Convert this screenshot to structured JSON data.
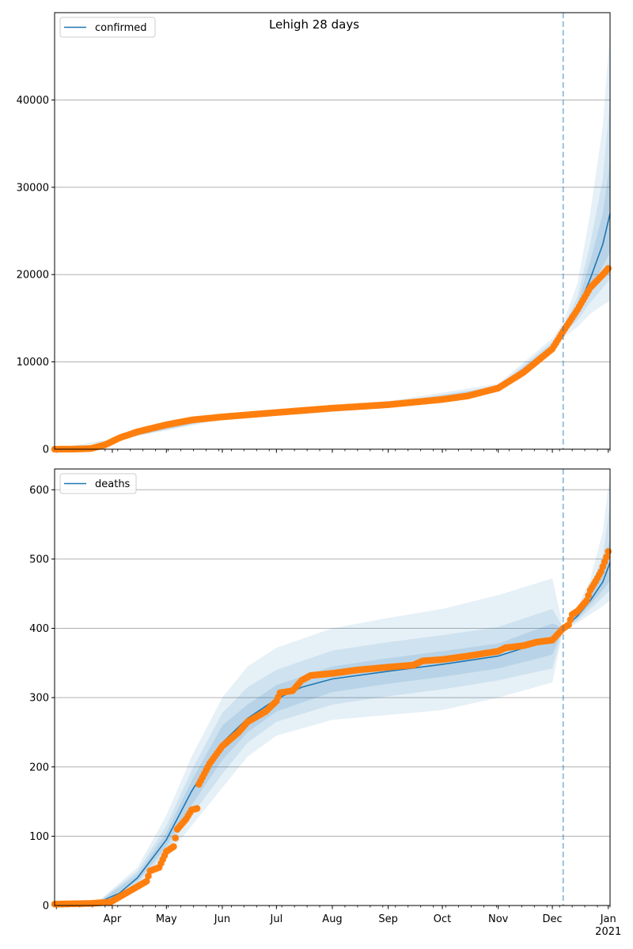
{
  "title": "Lehigh 28 days",
  "colors": {
    "model": "#1f77b4",
    "observed": "#ff7f0e",
    "band": "#1f77b4",
    "grid": "#b0b0b0"
  },
  "chart_data": [
    {
      "type": "line",
      "legend": "confirmed",
      "legend_position": "top-left",
      "grid": "horizontal",
      "x_range": [
        "2020-02-29",
        "2021-01-02"
      ],
      "vline_date": "2020-12-07",
      "ylim": [
        0,
        50000
      ],
      "yticks": [
        "0",
        "10000",
        "20000",
        "30000",
        "40000"
      ],
      "xticks": [
        "Apr",
        "May",
        "Jun",
        "Jul",
        "Aug",
        "Sep",
        "Oct",
        "Nov",
        "Dec",
        "Jan"
      ],
      "xtick_sub": "2021",
      "model_line": [
        [
          "2020-02-29",
          0
        ],
        [
          "2020-03-15",
          30
        ],
        [
          "2020-03-25",
          200
        ],
        [
          "2020-04-05",
          1200
        ],
        [
          "2020-04-15",
          2000
        ],
        [
          "2020-05-01",
          2800
        ],
        [
          "2020-05-15",
          3300
        ],
        [
          "2020-06-01",
          3700
        ],
        [
          "2020-07-01",
          4200
        ],
        [
          "2020-08-01",
          4700
        ],
        [
          "2020-09-01",
          5100
        ],
        [
          "2020-10-01",
          5700
        ],
        [
          "2020-10-15",
          6100
        ],
        [
          "2020-11-01",
          7000
        ],
        [
          "2020-11-15",
          8800
        ],
        [
          "2020-12-01",
          11800
        ],
        [
          "2020-12-07",
          13600
        ],
        [
          "2020-12-15",
          16000
        ],
        [
          "2020-12-22",
          19500
        ],
        [
          "2020-12-29",
          23500
        ],
        [
          "2021-01-02",
          27000
        ]
      ],
      "band_outer": [
        [
          "2020-02-29",
          0,
          0
        ],
        [
          "2020-04-05",
          1100,
          1300
        ],
        [
          "2020-06-01",
          3400,
          4000
        ],
        [
          "2020-09-01",
          4700,
          5500
        ],
        [
          "2020-11-01",
          6600,
          7500
        ],
        [
          "2020-12-01",
          11000,
          12700
        ],
        [
          "2020-12-07",
          12800,
          14500
        ],
        [
          "2020-12-15",
          14000,
          19000
        ],
        [
          "2020-12-22",
          15500,
          27000
        ],
        [
          "2020-12-29",
          16500,
          37000
        ],
        [
          "2021-01-02",
          17000,
          48000
        ]
      ],
      "band_mid": [
        [
          "2020-02-29",
          0,
          0
        ],
        [
          "2020-04-05",
          1150,
          1250
        ],
        [
          "2020-06-01",
          3550,
          3850
        ],
        [
          "2020-09-01",
          4900,
          5300
        ],
        [
          "2020-11-01",
          6800,
          7250
        ],
        [
          "2020-12-01",
          11400,
          12300
        ],
        [
          "2020-12-07",
          13200,
          14000
        ],
        [
          "2020-12-15",
          14800,
          17500
        ],
        [
          "2020-12-22",
          16800,
          23500
        ],
        [
          "2020-12-29",
          18500,
          31000
        ],
        [
          "2021-01-02",
          19500,
          40000
        ]
      ],
      "band_inner": [
        [
          "2020-02-29",
          0,
          0
        ],
        [
          "2020-04-05",
          1180,
          1220
        ],
        [
          "2020-06-01",
          3630,
          3770
        ],
        [
          "2020-09-01",
          5000,
          5200
        ],
        [
          "2020-11-01",
          6900,
          7100
        ],
        [
          "2020-12-01",
          11600,
          12000
        ],
        [
          "2020-12-07",
          13400,
          13800
        ],
        [
          "2020-12-15",
          15400,
          16700
        ],
        [
          "2020-12-22",
          18200,
          21500
        ],
        [
          "2020-12-29",
          21000,
          27000
        ],
        [
          "2021-01-02",
          22500,
          33000
        ]
      ],
      "observed": [
        [
          "2020-02-29",
          0
        ],
        [
          "2020-03-10",
          5
        ],
        [
          "2020-03-20",
          80
        ],
        [
          "2020-03-28",
          500
        ],
        [
          "2020-04-05",
          1300
        ],
        [
          "2020-04-15",
          2000
        ],
        [
          "2020-05-01",
          2800
        ],
        [
          "2020-05-15",
          3350
        ],
        [
          "2020-06-01",
          3700
        ],
        [
          "2020-07-01",
          4200
        ],
        [
          "2020-08-01",
          4700
        ],
        [
          "2020-09-01",
          5100
        ],
        [
          "2020-10-01",
          5700
        ],
        [
          "2020-10-15",
          6100
        ],
        [
          "2020-11-01",
          7000
        ],
        [
          "2020-11-15",
          8800
        ],
        [
          "2020-12-01",
          11500
        ],
        [
          "2020-12-07",
          13500
        ],
        [
          "2020-12-15",
          16000
        ],
        [
          "2020-12-22",
          18500
        ],
        [
          "2020-12-29",
          20000
        ],
        [
          "2021-01-01",
          20700
        ]
      ]
    },
    {
      "type": "line",
      "legend": "deaths",
      "legend_position": "top-left",
      "grid": "horizontal",
      "x_range": [
        "2020-02-29",
        "2021-01-02"
      ],
      "vline_date": "2020-12-07",
      "ylim": [
        0,
        630
      ],
      "yticks": [
        "0",
        "100",
        "200",
        "300",
        "400",
        "500",
        "600"
      ],
      "xticks": [
        "Apr",
        "May",
        "Jun",
        "Jul",
        "Aug",
        "Sep",
        "Oct",
        "Nov",
        "Dec",
        "Jan"
      ],
      "xtick_sub": "2021",
      "model_line": [
        [
          "2020-02-29",
          0
        ],
        [
          "2020-03-15",
          1
        ],
        [
          "2020-03-25",
          5
        ],
        [
          "2020-04-05",
          18
        ],
        [
          "2020-04-15",
          40
        ],
        [
          "2020-05-01",
          95
        ],
        [
          "2020-05-15",
          165
        ],
        [
          "2020-06-01",
          235
        ],
        [
          "2020-06-15",
          270
        ],
        [
          "2020-07-01",
          298
        ],
        [
          "2020-07-15",
          315
        ],
        [
          "2020-08-01",
          327
        ],
        [
          "2020-09-01",
          338
        ],
        [
          "2020-10-01",
          348
        ],
        [
          "2020-11-01",
          360
        ],
        [
          "2020-12-01",
          385
        ],
        [
          "2020-12-07",
          400
        ],
        [
          "2020-12-15",
          418
        ],
        [
          "2020-12-22",
          440
        ],
        [
          "2020-12-29",
          467
        ],
        [
          "2021-01-02",
          495
        ]
      ],
      "band_outer": [
        [
          "2020-02-29",
          0,
          0
        ],
        [
          "2020-03-25",
          2,
          8
        ],
        [
          "2020-04-15",
          28,
          55
        ],
        [
          "2020-05-01",
          70,
          130
        ],
        [
          "2020-05-15",
          115,
          215
        ],
        [
          "2020-06-01",
          170,
          300
        ],
        [
          "2020-06-15",
          215,
          345
        ],
        [
          "2020-07-01",
          245,
          372
        ],
        [
          "2020-08-01",
          268,
          400
        ],
        [
          "2020-09-01",
          275,
          415
        ],
        [
          "2020-10-01",
          282,
          428
        ],
        [
          "2020-11-01",
          300,
          448
        ],
        [
          "2020-12-01",
          322,
          472
        ],
        [
          "2020-12-07",
          398,
          402
        ],
        [
          "2020-12-15",
          408,
          432
        ],
        [
          "2020-12-22",
          420,
          470
        ],
        [
          "2020-12-29",
          432,
          540
        ],
        [
          "2021-01-02",
          440,
          625
        ]
      ],
      "band_mid": [
        [
          "2020-02-29",
          0,
          0
        ],
        [
          "2020-03-25",
          3,
          7
        ],
        [
          "2020-04-15",
          32,
          50
        ],
        [
          "2020-05-01",
          78,
          115
        ],
        [
          "2020-05-15",
          130,
          195
        ],
        [
          "2020-06-01",
          190,
          278
        ],
        [
          "2020-06-15",
          235,
          315
        ],
        [
          "2020-07-01",
          265,
          340
        ],
        [
          "2020-08-01",
          290,
          368
        ],
        [
          "2020-09-01",
          302,
          380
        ],
        [
          "2020-10-01",
          312,
          390
        ],
        [
          "2020-11-01",
          325,
          402
        ],
        [
          "2020-12-01",
          342,
          428
        ],
        [
          "2020-12-07",
          399,
          401
        ],
        [
          "2020-12-15",
          411,
          428
        ],
        [
          "2020-12-22",
          428,
          458
        ],
        [
          "2020-12-29",
          445,
          505
        ],
        [
          "2021-01-02",
          455,
          580
        ]
      ],
      "band_inner": [
        [
          "2020-02-29",
          0,
          0
        ],
        [
          "2020-03-25",
          4,
          6
        ],
        [
          "2020-04-15",
          35,
          45
        ],
        [
          "2020-05-01",
          85,
          105
        ],
        [
          "2020-05-15",
          145,
          180
        ],
        [
          "2020-06-01",
          210,
          260
        ],
        [
          "2020-06-15",
          250,
          290
        ],
        [
          "2020-07-01",
          280,
          318
        ],
        [
          "2020-08-01",
          308,
          345
        ],
        [
          "2020-09-01",
          320,
          357
        ],
        [
          "2020-10-01",
          330,
          367
        ],
        [
          "2020-11-01",
          342,
          378
        ],
        [
          "2020-12-01",
          362,
          407
        ],
        [
          "2020-12-07",
          399.5,
          400.5
        ],
        [
          "2020-12-15",
          414,
          424
        ],
        [
          "2020-12-22",
          434,
          450
        ],
        [
          "2020-12-29",
          455,
          483
        ],
        [
          "2021-01-02",
          468,
          530
        ]
      ],
      "observed": [
        [
          "2020-02-29",
          2
        ],
        [
          "2020-03-20",
          3
        ],
        [
          "2020-03-31",
          5
        ],
        [
          "2020-04-10",
          20
        ],
        [
          "2020-04-20",
          35
        ],
        [
          "2020-04-22",
          50
        ],
        [
          "2020-04-27",
          55
        ],
        [
          "2020-05-01",
          78
        ],
        [
          "2020-05-05",
          85
        ],
        [
          "2020-05-07",
          110
        ],
        [
          "2020-05-12",
          125
        ],
        [
          "2020-05-15",
          138
        ],
        [
          "2020-05-18",
          140
        ],
        [
          "2020-05-19",
          175
        ],
        [
          "2020-05-25",
          205
        ],
        [
          "2020-06-01",
          230
        ],
        [
          "2020-06-10",
          250
        ],
        [
          "2020-06-15",
          265
        ],
        [
          "2020-06-25",
          280
        ],
        [
          "2020-07-01",
          295
        ],
        [
          "2020-07-03",
          307
        ],
        [
          "2020-07-10",
          310
        ],
        [
          "2020-07-15",
          325
        ],
        [
          "2020-07-20",
          332
        ],
        [
          "2020-08-01",
          335
        ],
        [
          "2020-08-15",
          340
        ],
        [
          "2020-09-01",
          344
        ],
        [
          "2020-09-15",
          347
        ],
        [
          "2020-09-20",
          353
        ],
        [
          "2020-10-01",
          355
        ],
        [
          "2020-10-15",
          360
        ],
        [
          "2020-11-01",
          367
        ],
        [
          "2020-11-05",
          372
        ],
        [
          "2020-11-15",
          375
        ],
        [
          "2020-11-22",
          380
        ],
        [
          "2020-12-01",
          383
        ],
        [
          "2020-12-07",
          400
        ],
        [
          "2020-12-10",
          405
        ],
        [
          "2020-12-12",
          420
        ],
        [
          "2020-12-15",
          425
        ],
        [
          "2020-12-20",
          440
        ],
        [
          "2020-12-22",
          455
        ],
        [
          "2020-12-25",
          468
        ],
        [
          "2020-12-28",
          482
        ],
        [
          "2020-12-31",
          503
        ],
        [
          "2021-01-01",
          511
        ]
      ]
    }
  ]
}
